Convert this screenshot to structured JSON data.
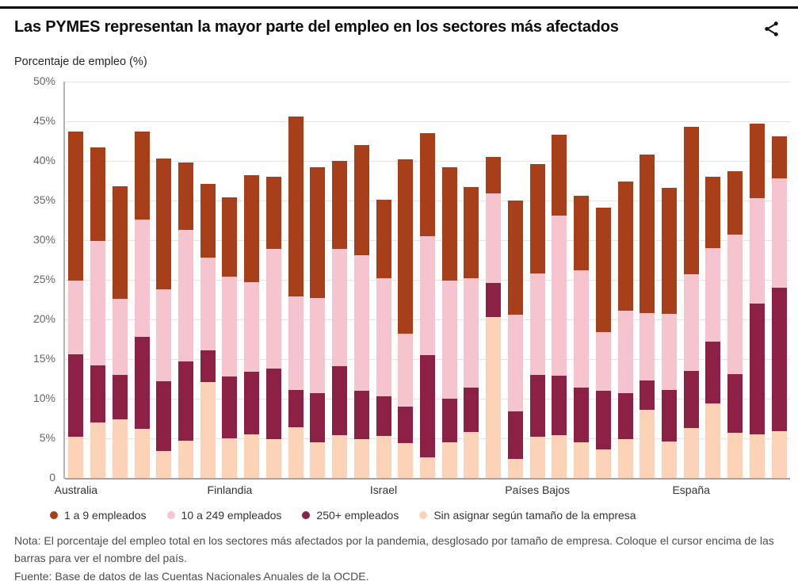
{
  "header": {
    "title": "Las PYMES representan la mayor parte del empleo en los sectores más afectados",
    "share_icon": "share-icon"
  },
  "chart": {
    "y_axis_title": "Porcentaje de empleo (%)"
  },
  "chart_data": {
    "type": "bar",
    "stacked": true,
    "title": "Las PYMES representan la mayor parte del empleo en los sectores más afectados",
    "ylabel": "Porcentaje de empleo (%)",
    "ylim": [
      0,
      50
    ],
    "y_ticks": [
      "50%",
      "45%",
      "40%",
      "35%",
      "30%",
      "25%",
      "20%",
      "15%",
      "10%",
      "5%",
      "0"
    ],
    "grid": true,
    "legend_position": "bottom",
    "n_bars": 33,
    "x_tick_labels": [
      {
        "label": "Australia",
        "bar_index": 0
      },
      {
        "label": "Finlandia",
        "bar_index": 7
      },
      {
        "label": "Israel",
        "bar_index": 14
      },
      {
        "label": "Países Bajos",
        "bar_index": 21
      },
      {
        "label": "España",
        "bar_index": 28
      }
    ],
    "series_note": "series listed bottom-to-top of the stack; values in % of employment",
    "series": [
      {
        "id": "sin-asignar",
        "name": "Sin asignar según tamaño de la empresa",
        "color": "#fdd3b8",
        "values": [
          5.2,
          7.0,
          7.4,
          6.2,
          3.4,
          4.7,
          12.1,
          5.0,
          5.5,
          4.9,
          6.4,
          4.5,
          5.4,
          4.9,
          5.3,
          4.4,
          2.6,
          4.5,
          5.8,
          20.3,
          2.4,
          5.2,
          5.4,
          4.5,
          3.6,
          4.9,
          8.6,
          4.6,
          6.3,
          9.4,
          5.7,
          5.5,
          5.9
        ]
      },
      {
        "id": "250-mas",
        "name": "250+ empleados",
        "color": "#8c2145",
        "values": [
          10.4,
          7.2,
          5.6,
          11.6,
          8.8,
          10.0,
          4.0,
          7.8,
          7.9,
          8.9,
          4.7,
          6.2,
          8.7,
          6.1,
          5.0,
          4.6,
          12.9,
          5.5,
          5.6,
          4.3,
          6.0,
          7.8,
          7.5,
          6.9,
          7.4,
          5.8,
          3.7,
          6.5,
          7.2,
          7.8,
          7.4,
          16.5,
          18.1
        ]
      },
      {
        "id": "10-249",
        "name": "10 a 249 empleados",
        "color": "#f5c4cf",
        "values": [
          9.3,
          15.7,
          9.6,
          14.8,
          11.6,
          16.6,
          11.7,
          12.6,
          11.3,
          15.1,
          11.8,
          12.0,
          14.8,
          17.1,
          14.9,
          9.2,
          15.0,
          14.9,
          13.8,
          11.3,
          12.2,
          12.8,
          20.2,
          14.8,
          7.4,
          10.4,
          8.5,
          9.6,
          12.2,
          11.8,
          17.6,
          13.3,
          13.8
        ]
      },
      {
        "id": "1-9",
        "name": "1 a 9 empleados",
        "color": "#a63f1a",
        "values": [
          18.8,
          11.8,
          14.2,
          11.1,
          16.5,
          8.5,
          9.3,
          10.0,
          13.5,
          9.1,
          22.7,
          16.5,
          11.1,
          13.9,
          9.9,
          22.0,
          13.0,
          14.3,
          11.5,
          4.6,
          14.4,
          13.8,
          10.2,
          9.4,
          15.7,
          16.3,
          20.0,
          15.9,
          18.6,
          9.0,
          8.0,
          9.4,
          5.3
        ]
      }
    ]
  },
  "legend": {
    "items": [
      {
        "label": "1 a 9 empleados",
        "color": "#a63f1a"
      },
      {
        "label": "10 a 249 empleados",
        "color": "#f5c4cf"
      },
      {
        "label": "250+ empleados",
        "color": "#8c2145"
      },
      {
        "label": "Sin asignar según tamaño de la empresa",
        "color": "#fdd3b8"
      }
    ]
  },
  "footer": {
    "note": "Nota: El porcentaje del empleo total en los sectores más afectados por la pandemia, desglosado por tamaño de empresa. Coloque el cursor encima de las barras para ver el nombre del país.",
    "source_prefix": "Fuente: ",
    "source_link": "Base de datos de las Cuentas Nacionales Anuales de la OCDE",
    "source_suffix": "."
  }
}
